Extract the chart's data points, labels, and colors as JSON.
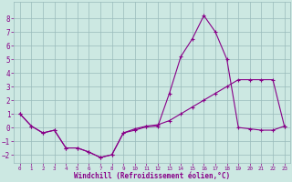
{
  "background_color": "#cce8e2",
  "grid_color": "#99bbbb",
  "line_color": "#880088",
  "hours": [
    0,
    1,
    2,
    3,
    4,
    5,
    6,
    7,
    8,
    9,
    10,
    11,
    12,
    13,
    14,
    15,
    16,
    17,
    18,
    19,
    20,
    21,
    22,
    23
  ],
  "temp": [
    1.0,
    0.1,
    -0.4,
    -0.2,
    -1.5,
    -1.5,
    -1.8,
    -2.2,
    -2.0,
    -0.4,
    -0.2,
    0.05,
    0.1,
    2.5,
    5.2,
    6.5,
    8.2,
    7.0,
    5.0,
    0.0,
    -0.1,
    -0.2,
    -0.2,
    0.1
  ],
  "windchill": [
    1.0,
    0.1,
    -0.4,
    -0.2,
    -1.5,
    -1.5,
    -1.8,
    -2.2,
    -2.0,
    -0.4,
    -0.1,
    0.1,
    0.2,
    0.5,
    1.0,
    1.5,
    2.0,
    2.5,
    3.0,
    3.5,
    3.5,
    3.5,
    3.5,
    0.1
  ],
  "ylim": [
    -2.6,
    9.2
  ],
  "xlim": [
    -0.5,
    23.5
  ],
  "yticks": [
    -2,
    -1,
    0,
    1,
    2,
    3,
    4,
    5,
    6,
    7,
    8
  ],
  "xticks": [
    0,
    1,
    2,
    3,
    4,
    5,
    6,
    7,
    8,
    9,
    10,
    11,
    12,
    13,
    14,
    15,
    16,
    17,
    18,
    19,
    20,
    21,
    22,
    23
  ],
  "xlabel": "Windchill (Refroidissement éolien,°C)"
}
